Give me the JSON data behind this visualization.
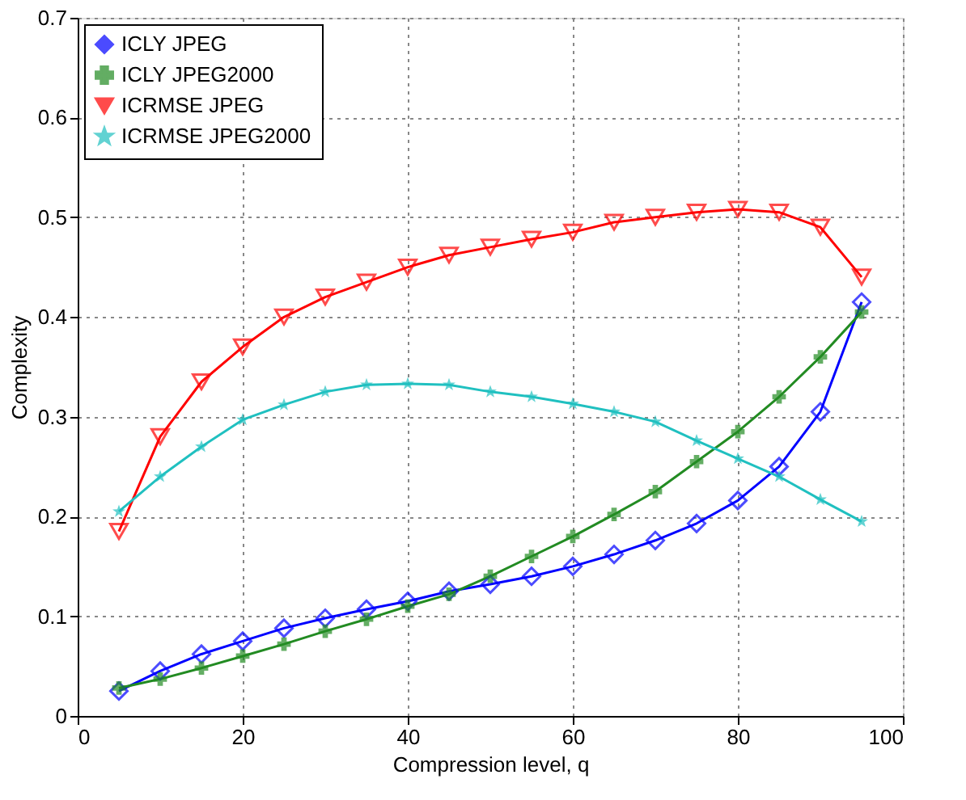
{
  "chart_data": {
    "type": "line",
    "xlabel": "Compression level, q",
    "ylabel": "Complexity",
    "x": [
      5,
      10,
      15,
      20,
      25,
      30,
      35,
      40,
      45,
      50,
      55,
      60,
      65,
      70,
      75,
      80,
      85,
      90,
      95
    ],
    "xlim": [
      0,
      100
    ],
    "xticks": [
      0,
      20,
      40,
      60,
      80,
      100
    ],
    "ylim": [
      0,
      0.7
    ],
    "yticks": [
      0,
      0.1,
      0.2,
      0.3,
      0.4,
      0.5,
      0.6,
      0.7
    ],
    "grid": true,
    "legend": "top left",
    "line_style": "solid",
    "series": [
      {
        "name": "ICLY JPEG",
        "color": "#0000ff",
        "marker": "diamond",
        "values": [
          0.025,
          0.045,
          0.062,
          0.075,
          0.088,
          0.098,
          0.107,
          0.115,
          0.125,
          0.132,
          0.14,
          0.15,
          0.162,
          0.176,
          0.193,
          0.216,
          0.25,
          0.305,
          0.415
        ]
      },
      {
        "name": "ICLY JPEG2000",
        "color": "#228b22",
        "marker": "cross",
        "values": [
          0.028,
          0.037,
          0.048,
          0.06,
          0.072,
          0.085,
          0.097,
          0.11,
          0.122,
          0.14,
          0.16,
          0.18,
          0.202,
          0.225,
          0.255,
          0.285,
          0.32,
          0.36,
          0.405
        ]
      },
      {
        "name": "ICRMSE JPEG",
        "color": "#ff0000",
        "marker": "triangle",
        "values": [
          0.185,
          0.28,
          0.335,
          0.37,
          0.4,
          0.42,
          0.435,
          0.45,
          0.462,
          0.47,
          0.478,
          0.485,
          0.495,
          0.5,
          0.505,
          0.508,
          0.505,
          0.49,
          0.44
        ]
      },
      {
        "name": "ICRMSE JPEG2000",
        "color": "#20c0c0",
        "marker": "star",
        "values": [
          0.205,
          0.24,
          0.27,
          0.297,
          0.312,
          0.325,
          0.332,
          0.333,
          0.332,
          0.325,
          0.32,
          0.313,
          0.305,
          0.295,
          0.276,
          0.258,
          0.24,
          0.217,
          0.195
        ]
      }
    ]
  }
}
